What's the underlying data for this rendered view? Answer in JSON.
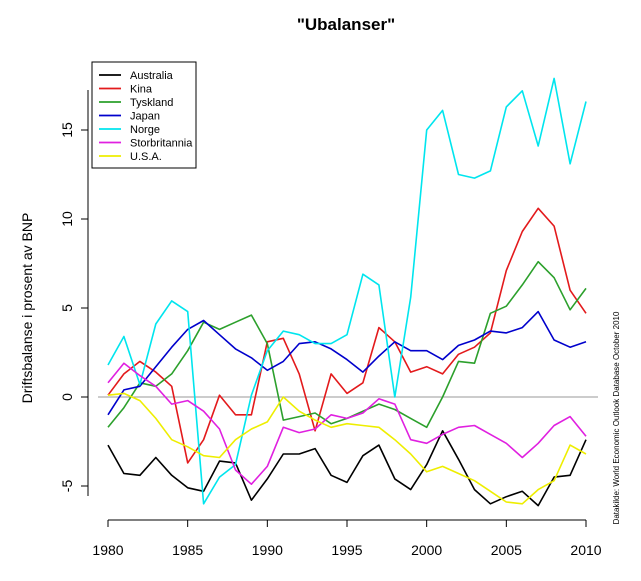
{
  "chart_data": {
    "type": "line",
    "title": "\"Ubalanser\"",
    "xlabel": "",
    "ylabel": "Driftsbalanse i prosent av BNP",
    "source_note": "Datakilde: World Economic Outlook Database October 2010",
    "xlim": [
      1980,
      2010
    ],
    "ylim": [
      -6,
      18
    ],
    "x_ticks": [
      1980,
      1985,
      1990,
      1995,
      2000,
      2005,
      2010
    ],
    "y_ticks": [
      -5,
      0,
      5,
      10,
      15
    ],
    "zero_line_color": "#999999",
    "legend_position": "top-left",
    "x": [
      1980,
      1981,
      1982,
      1983,
      1984,
      1985,
      1986,
      1987,
      1988,
      1989,
      1990,
      1991,
      1992,
      1993,
      1994,
      1995,
      1996,
      1997,
      1998,
      1999,
      2000,
      2001,
      2002,
      2003,
      2004,
      2005,
      2006,
      2007,
      2008,
      2009,
      2010
    ],
    "series": [
      {
        "name": "Australia",
        "color": "#000000",
        "values": [
          -2.7,
          -4.3,
          -4.4,
          -3.4,
          -4.4,
          -5.1,
          -5.3,
          -3.6,
          -3.7,
          -5.8,
          -4.6,
          -3.2,
          -3.2,
          -2.9,
          -4.4,
          -4.8,
          -3.3,
          -2.7,
          -4.6,
          -5.2,
          -3.8,
          -1.9,
          -3.5,
          -5.2,
          -6.0,
          -5.6,
          -5.3,
          -6.1,
          -4.5,
          -4.4,
          -2.4
        ]
      },
      {
        "name": "Kina",
        "color": "#e31a1c",
        "values": [
          0.1,
          1.3,
          2.0,
          1.4,
          0.6,
          -3.7,
          -2.4,
          0.1,
          -1.0,
          -1.0,
          3.1,
          3.3,
          1.3,
          -1.9,
          1.3,
          0.2,
          0.8,
          3.9,
          3.1,
          1.4,
          1.7,
          1.3,
          2.4,
          2.8,
          3.6,
          7.1,
          9.3,
          10.6,
          9.6,
          6.0,
          4.7
        ]
      },
      {
        "name": "Tyskland",
        "color": "#2ca02c",
        "values": [
          -1.7,
          -0.6,
          0.8,
          0.6,
          1.3,
          2.6,
          4.2,
          3.8,
          4.2,
          4.6,
          3.0,
          -1.3,
          -1.1,
          -0.9,
          -1.5,
          -1.2,
          -0.8,
          -0.4,
          -0.7,
          -1.2,
          -1.7,
          0.0,
          2.0,
          1.9,
          4.7,
          5.1,
          6.3,
          7.6,
          6.7,
          4.9,
          6.1
        ]
      },
      {
        "name": "Japan",
        "color": "#0000cc",
        "values": [
          -1.0,
          0.4,
          0.6,
          1.7,
          2.8,
          3.8,
          4.3,
          3.5,
          2.7,
          2.2,
          1.5,
          2.0,
          3.0,
          3.1,
          2.7,
          2.1,
          1.4,
          2.3,
          3.1,
          2.6,
          2.6,
          2.1,
          2.9,
          3.2,
          3.7,
          3.6,
          3.9,
          4.8,
          3.2,
          2.8,
          3.1
        ]
      },
      {
        "name": "Norge",
        "color": "#00e5ee",
        "values": [
          1.8,
          3.4,
          0.7,
          4.1,
          5.4,
          4.8,
          -6.0,
          -4.5,
          -3.8,
          0.1,
          2.6,
          3.7,
          3.5,
          3.0,
          3.0,
          3.5,
          6.9,
          6.3,
          0.0,
          5.6,
          15.0,
          16.1,
          12.5,
          12.3,
          12.7,
          16.3,
          17.2,
          14.1,
          17.9,
          13.1,
          16.6
        ]
      },
      {
        "name": "Storbritannia",
        "color": "#e020e0",
        "values": [
          0.8,
          1.9,
          1.2,
          0.6,
          -0.4,
          -0.2,
          -0.8,
          -1.8,
          -4.1,
          -4.9,
          -3.9,
          -1.7,
          -2.0,
          -1.8,
          -1.0,
          -1.2,
          -0.9,
          -0.1,
          -0.4,
          -2.4,
          -2.6,
          -2.1,
          -1.7,
          -1.6,
          -2.1,
          -2.6,
          -3.4,
          -2.6,
          -1.6,
          -1.1,
          -2.2
        ]
      },
      {
        "name": "U.S.A.",
        "color": "#eeee00",
        "values": [
          0.1,
          0.2,
          -0.2,
          -1.2,
          -2.4,
          -2.8,
          -3.3,
          -3.4,
          -2.4,
          -1.8,
          -1.4,
          0.0,
          -0.8,
          -1.3,
          -1.7,
          -1.5,
          -1.6,
          -1.7,
          -2.4,
          -3.2,
          -4.2,
          -3.9,
          -4.3,
          -4.7,
          -5.3,
          -5.9,
          -6.0,
          -5.2,
          -4.7,
          -2.7,
          -3.2
        ]
      }
    ]
  }
}
